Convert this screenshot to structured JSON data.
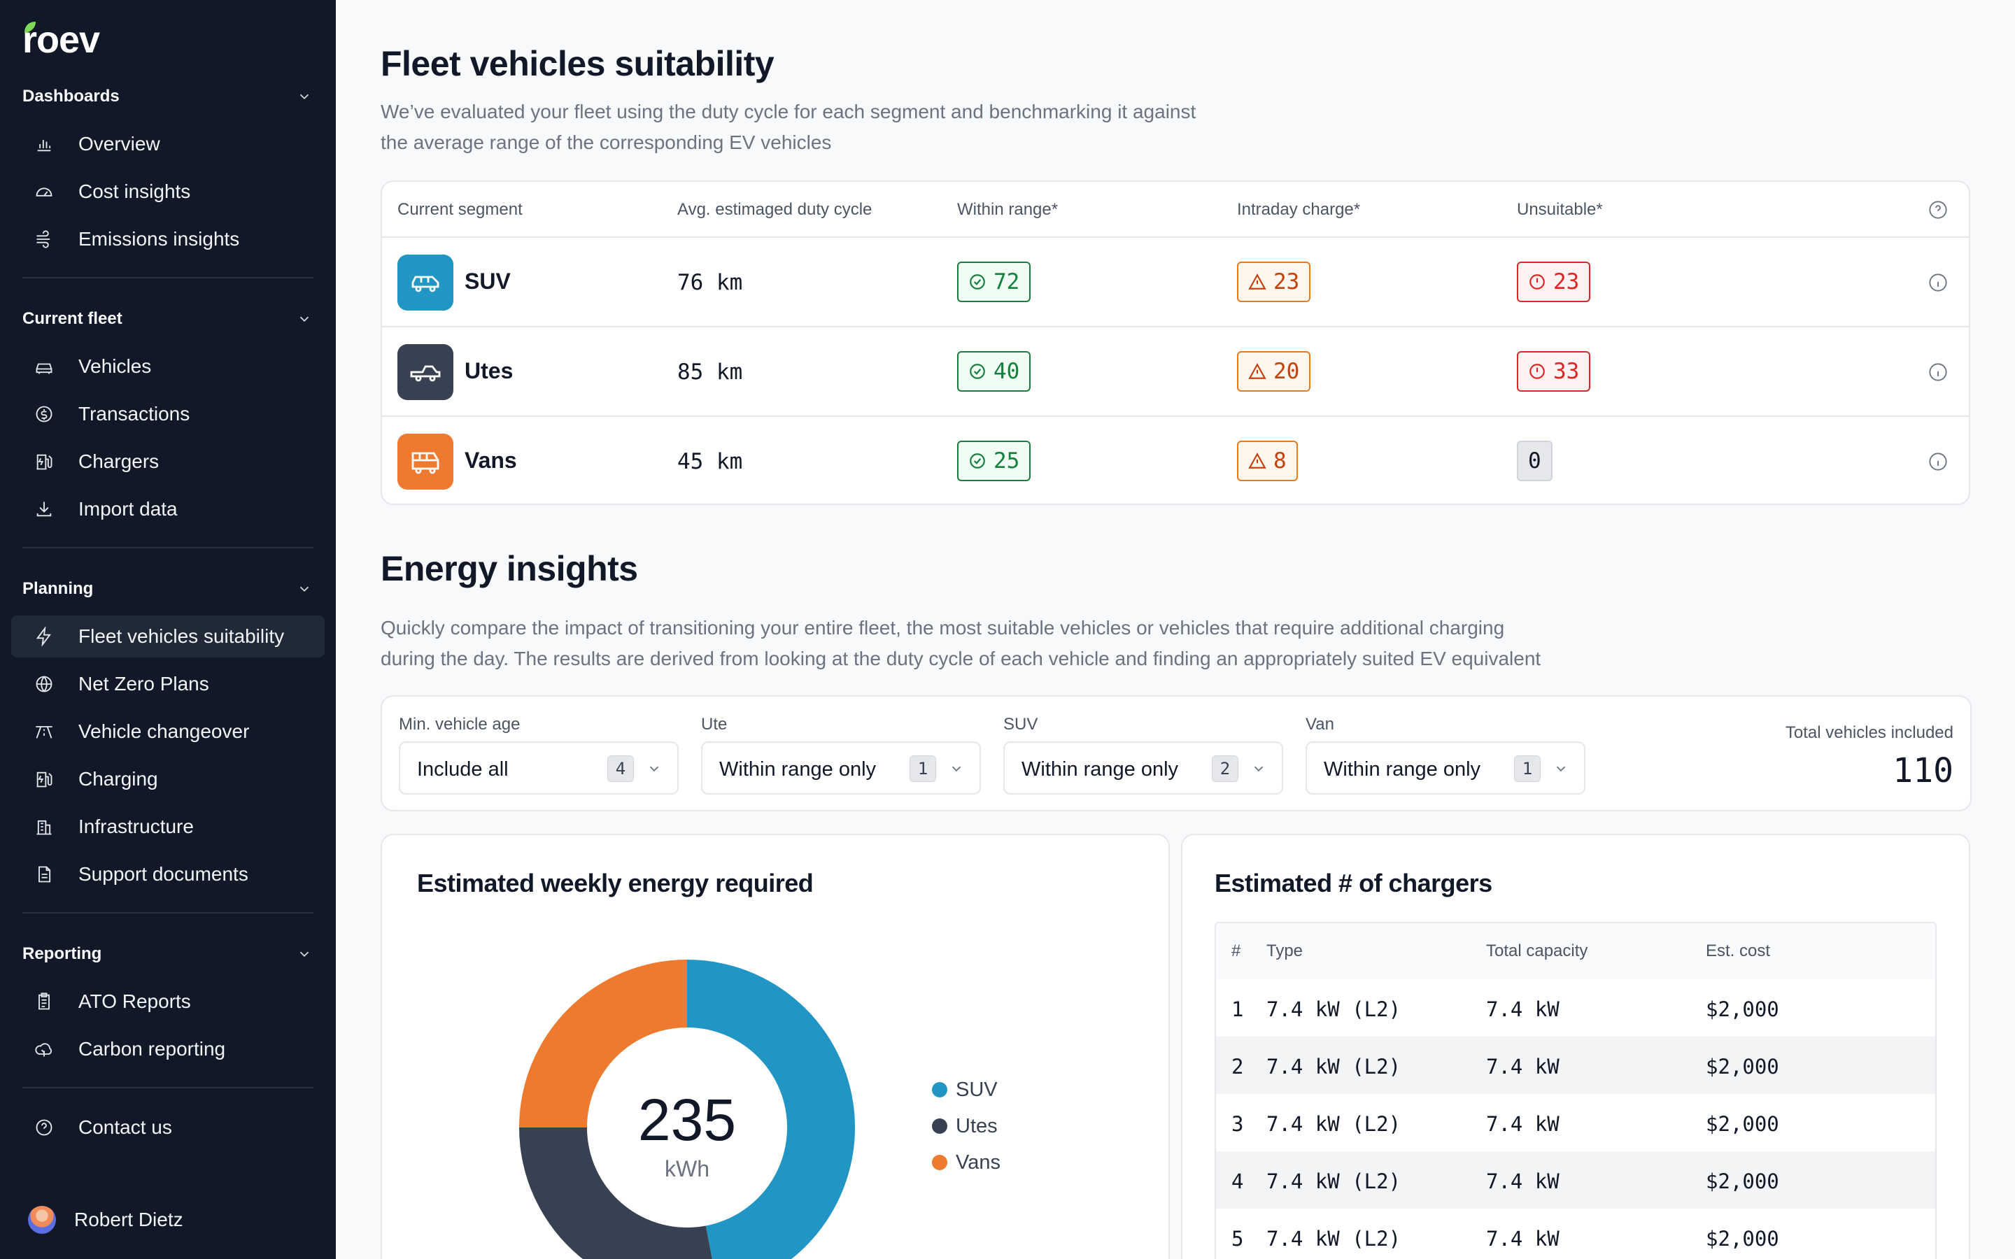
{
  "brand": {
    "name": "roev",
    "accent": "#7ed957"
  },
  "sidebar": {
    "sections": [
      {
        "title": "Dashboards",
        "items": [
          {
            "label": "Overview",
            "icon": "bar-chart-icon"
          },
          {
            "label": "Cost insights",
            "icon": "gauge-icon"
          },
          {
            "label": "Emissions insights",
            "icon": "wind-icon"
          }
        ]
      },
      {
        "title": "Current fleet",
        "items": [
          {
            "label": "Vehicles",
            "icon": "car-icon"
          },
          {
            "label": "Transactions",
            "icon": "dollar-circle-icon"
          },
          {
            "label": "Chargers",
            "icon": "charger-icon"
          },
          {
            "label": "Import data",
            "icon": "download-icon"
          }
        ]
      },
      {
        "title": "Planning",
        "items": [
          {
            "label": "Fleet vehicles suitability",
            "icon": "lightning-icon",
            "active": true
          },
          {
            "label": "Net Zero Plans",
            "icon": "globe-icon"
          },
          {
            "label": "Vehicle changeover",
            "icon": "road-icon"
          },
          {
            "label": "Charging",
            "icon": "charger-icon"
          },
          {
            "label": "Infrastructure",
            "icon": "building-icon"
          },
          {
            "label": "Support documents",
            "icon": "document-icon"
          }
        ]
      },
      {
        "title": "Reporting",
        "items": [
          {
            "label": "ATO Reports",
            "icon": "report-icon"
          },
          {
            "label": "Carbon reporting",
            "icon": "leaf-cloud-icon"
          }
        ]
      }
    ],
    "contact": {
      "label": "Contact us",
      "icon": "help-circle-icon"
    },
    "user": {
      "name": "Robert Dietz"
    }
  },
  "suitability": {
    "title": "Fleet vehicles suitability",
    "description_line1": "We’ve evaluated your fleet using the duty cycle for each segment and benchmarking it against",
    "description_line2": "the average range of the corresponding EV vehicles",
    "headers": {
      "segment": "Current segment",
      "duty": "Avg. estimaged duty cycle",
      "within": "Within range*",
      "intraday": "Intraday charge*",
      "unsuitable": "Unsuitable*"
    },
    "rows": [
      {
        "segment": "SUV",
        "duty": "76 km",
        "within": "72",
        "intraday": "23",
        "unsuitable": "23",
        "color": "#2196c4"
      },
      {
        "segment": "Utes",
        "duty": "85 km",
        "within": "40",
        "intraday": "20",
        "unsuitable": "33",
        "color": "#374151"
      },
      {
        "segment": "Vans",
        "duty": "45 km",
        "within": "25",
        "intraday": "8",
        "unsuitable": "0",
        "color": "#ee7a30"
      }
    ]
  },
  "energy": {
    "title": "Energy insights",
    "description_line1": "Quickly compare the impact of transitioning your entire fleet, the most suitable vehicles or vehicles that require additional charging",
    "description_line2": "during the day. The results are derived from looking at the duty cycle of each vehicle and finding an appropriately suited EV equivalent",
    "filters": [
      {
        "label": "Min. vehicle age",
        "value": "Include all",
        "count": "4"
      },
      {
        "label": "Ute",
        "value": "Within range only",
        "count": "1"
      },
      {
        "label": "SUV",
        "value": "Within range only",
        "count": "2"
      },
      {
        "label": "Van",
        "value": "Within range only",
        "count": "1"
      }
    ],
    "total_label": "Total vehicles included",
    "total_value": "110"
  },
  "weekly_energy": {
    "title": "Estimated weekly energy required",
    "center_value": "235",
    "center_unit": "kWh"
  },
  "chart_data": {
    "type": "pie",
    "title": "Estimated weekly energy required",
    "categories": [
      "SUV",
      "Utes",
      "Vans"
    ],
    "values": [
      47,
      28,
      25
    ],
    "colors": [
      "#2196c4",
      "#374151",
      "#ee7a30"
    ],
    "donut": true,
    "center_label": "235 kWh",
    "legend": "right"
  },
  "chargers": {
    "title": "Estimated # of chargers",
    "headers": {
      "num": "#",
      "type": "Type",
      "capacity": "Total capacity",
      "cost": "Est. cost"
    },
    "rows": [
      {
        "num": "1",
        "type": "7.4 kW (L2)",
        "capacity": "7.4 kW",
        "cost": "$2,000"
      },
      {
        "num": "2",
        "type": "7.4 kW (L2)",
        "capacity": "7.4 kW",
        "cost": "$2,000"
      },
      {
        "num": "3",
        "type": "7.4 kW (L2)",
        "capacity": "7.4 kW",
        "cost": "$2,000"
      },
      {
        "num": "4",
        "type": "7.4 kW (L2)",
        "capacity": "7.4 kW",
        "cost": "$2,000"
      },
      {
        "num": "5",
        "type": "7.4 kW (L2)",
        "capacity": "7.4 kW",
        "cost": "$2,000"
      }
    ]
  }
}
